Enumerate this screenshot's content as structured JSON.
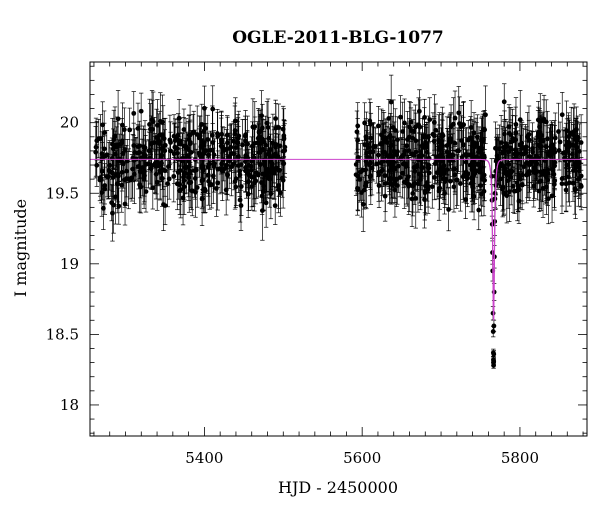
{
  "chart_data": {
    "type": "scatter",
    "title": "OGLE-2011-BLG-1077",
    "xlabel": "HJD - 2450000",
    "ylabel": "I magnitude",
    "xlim": [
      5255,
      5885
    ],
    "ylim": [
      20.43,
      17.78
    ],
    "y_inverted": true,
    "grid": false,
    "x_ticks": [
      5400,
      5600,
      5800
    ],
    "x_tick_labels": [
      "5400",
      "5600",
      "5800"
    ],
    "y_ticks": [
      18,
      18.5,
      19,
      19.5,
      20
    ],
    "y_tick_labels": [
      "18",
      "18.5",
      "19",
      "19.5",
      "20"
    ],
    "colors": {
      "points": "#000000",
      "model": "#cc44cc",
      "frame": "#000000"
    },
    "series": [
      {
        "kind": "points_with_errorbars",
        "segments": [
          {
            "x_range": [
              5262,
              5502
            ],
            "baseline": 19.74,
            "scatter": 0.14,
            "errorbar": 0.17,
            "count": 420
          },
          {
            "x_range": [
              5592,
              5757
            ],
            "baseline": 19.74,
            "scatter": 0.14,
            "errorbar": 0.17,
            "count": 330
          },
          {
            "x_range": [
              5768,
              5878
            ],
            "baseline": 19.74,
            "scatter": 0.14,
            "errorbar": 0.17,
            "count": 230
          }
        ],
        "peak_points": [
          {
            "x": 5764.3,
            "y": 19.62
          },
          {
            "x": 5764.6,
            "y": 19.45
          },
          {
            "x": 5764.9,
            "y": 19.28
          },
          {
            "x": 5765.2,
            "y": 19.08
          },
          {
            "x": 5765.5,
            "y": 18.95
          },
          {
            "x": 5765.9,
            "y": 18.65
          },
          {
            "x": 5766.1,
            "y": 18.52
          },
          {
            "x": 5766.3,
            "y": 18.37
          },
          {
            "x": 5766.4,
            "y": 18.32
          },
          {
            "x": 5766.5,
            "y": 18.3
          },
          {
            "x": 5766.6,
            "y": 18.28
          },
          {
            "x": 5766.7,
            "y": 18.31
          },
          {
            "x": 5766.8,
            "y": 18.36
          },
          {
            "x": 5767.0,
            "y": 18.56
          },
          {
            "x": 5767.3,
            "y": 18.8
          },
          {
            "x": 5767.6,
            "y": 19.05
          },
          {
            "x": 5768.0,
            "y": 19.3
          },
          {
            "x": 5768.5,
            "y": 19.5
          },
          {
            "x": 5769.0,
            "y": 19.62
          }
        ]
      },
      {
        "kind": "model_curve",
        "baseline": 19.74,
        "peak_x": 5766.6,
        "peak_y": 18.6,
        "tE": 2.2
      }
    ]
  }
}
